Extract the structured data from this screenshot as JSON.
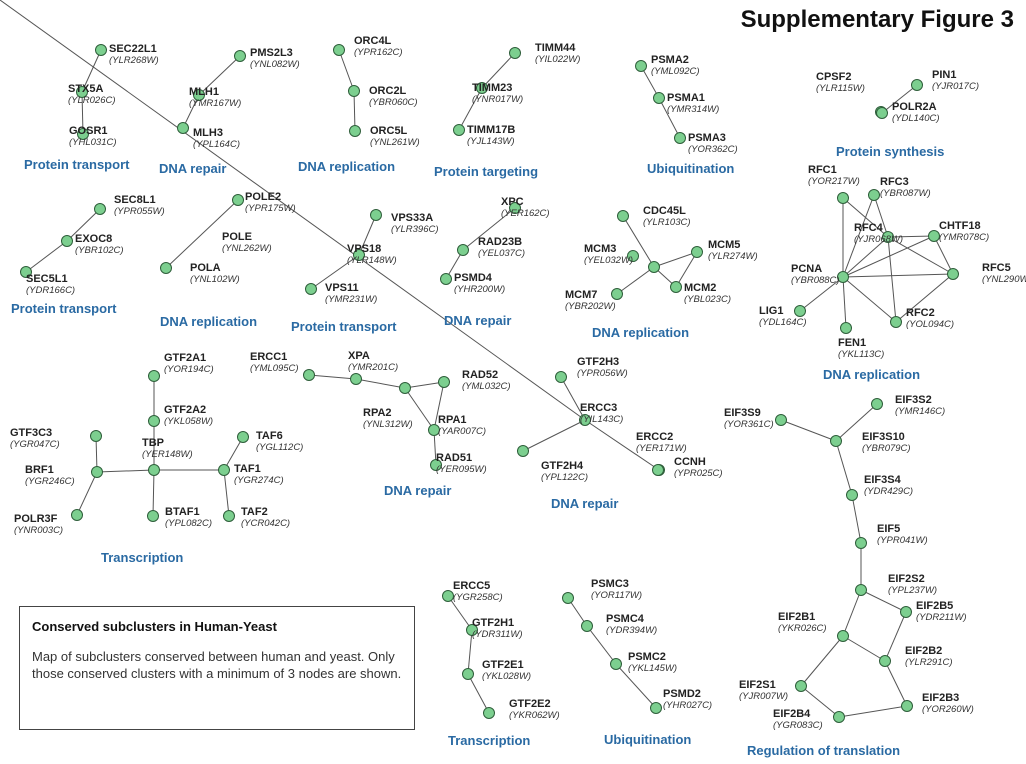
{
  "figure_title": "Supplementary Figure 3",
  "legend": {
    "heading": "Conserved subclusters in Human-Yeast",
    "body": "Map of subclusters conserved between human and yeast. Only those conserved clusters with a minimum of 3 nodes are shown."
  },
  "node_color": "#7ccf8f",
  "caption_color": "#2a6aa3",
  "clusters": [
    {
      "caption": "Protein transport",
      "nodes": [
        {
          "name": "SEC22L1",
          "id": "YLR268W"
        },
        {
          "name": "STX5A",
          "id": "YLR026C"
        },
        {
          "name": "GOSR1",
          "id": "YHL031C"
        }
      ],
      "edges": [
        [
          0,
          1
        ],
        [
          1,
          2
        ]
      ]
    },
    {
      "caption": "DNA repair",
      "nodes": [
        {
          "name": "PMS2L3",
          "id": "YNL082W"
        },
        {
          "name": "MLH1",
          "id": "YMR167W"
        },
        {
          "name": "MLH3",
          "id": "YPL164C"
        }
      ],
      "edges": [
        [
          0,
          1
        ],
        [
          1,
          2
        ]
      ]
    },
    {
      "caption": "DNA replication",
      "nodes": [
        {
          "name": "ORC4L",
          "id": "YPR162C"
        },
        {
          "name": "ORC2L",
          "id": "YBR060C"
        },
        {
          "name": "ORC5L",
          "id": "YNL261W"
        }
      ],
      "edges": [
        [
          0,
          1
        ],
        [
          1,
          2
        ]
      ]
    },
    {
      "caption": "Protein targeting",
      "nodes": [
        {
          "name": "TIMM44",
          "id": "YIL022W"
        },
        {
          "name": "TIMM23",
          "id": "YNR017W"
        },
        {
          "name": "TIMM17B",
          "id": "YJL143W"
        }
      ],
      "edges": [
        [
          0,
          1
        ],
        [
          1,
          2
        ]
      ]
    },
    {
      "caption": "Ubiquitination",
      "nodes": [
        {
          "name": "PSMA2",
          "id": "YML092C"
        },
        {
          "name": "PSMA1",
          "id": "YMR314W"
        },
        {
          "name": "PSMA3",
          "id": "YOR362C"
        }
      ],
      "edges": [
        [
          0,
          1
        ],
        [
          1,
          2
        ]
      ]
    },
    {
      "caption": "Protein synthesis",
      "nodes": [
        {
          "name": "CPSF2",
          "id": "YLR115W"
        },
        {
          "name": "PIN1",
          "id": "YJR017C"
        },
        {
          "name": "POLR2A",
          "id": "YDL140C"
        }
      ],
      "edges": [
        [
          0,
          2
        ],
        [
          1,
          2
        ]
      ]
    },
    {
      "caption": "Protein transport",
      "nodes": [
        {
          "name": "SEC8L1",
          "id": "YPR055W"
        },
        {
          "name": "EXOC8",
          "id": "YBR102C"
        },
        {
          "name": "SEC5L1",
          "id": "YDR166C"
        }
      ],
      "edges": [
        [
          0,
          1
        ],
        [
          1,
          2
        ]
      ]
    },
    {
      "caption": "DNA replication",
      "nodes": [
        {
          "name": "POLE2",
          "id": "YPR175W"
        },
        {
          "name": "POLE",
          "id": "YNL262W"
        },
        {
          "name": "POLA",
          "id": "YNL102W"
        }
      ],
      "edges": [
        [
          0,
          2
        ]
      ]
    },
    {
      "caption": "Protein transport",
      "nodes": [
        {
          "name": "VPS33A",
          "id": "YLR396C"
        },
        {
          "name": "VPS18",
          "id": "YLR148W"
        },
        {
          "name": "VPS11",
          "id": "YMR231W"
        }
      ],
      "edges": [
        [
          0,
          1
        ],
        [
          1,
          2
        ]
      ]
    },
    {
      "caption": "DNA repair",
      "nodes": [
        {
          "name": "XPC",
          "id": "YER162C"
        },
        {
          "name": "RAD23B",
          "id": "YEL037C"
        },
        {
          "name": "PSMD4",
          "id": "YHR200W"
        }
      ],
      "edges": [
        [
          0,
          1
        ],
        [
          1,
          2
        ]
      ]
    },
    {
      "caption": "DNA replication",
      "nodes": [
        {
          "name": "CDC45L",
          "id": "YLR103C"
        },
        {
          "name": "MCM3",
          "id": "YEL032W"
        },
        {
          "name": "MCM5",
          "id": "YLR274W"
        },
        {
          "name": "MCM7",
          "id": "YBR202W"
        },
        {
          "name": "MCM2",
          "id": "YBL023C"
        },
        {
          "name": "",
          "id": ""
        }
      ],
      "edges": [
        [
          0,
          5
        ],
        [
          5,
          2
        ],
        [
          5,
          3
        ],
        [
          5,
          4
        ],
        [
          2,
          4
        ]
      ]
    },
    {
      "caption": "DNA replication",
      "nodes": [
        {
          "name": "RFC1",
          "id": "YOR217W"
        },
        {
          "name": "RFC3",
          "id": "YBR087W"
        },
        {
          "name": "RFC4",
          "id": "YJR068W"
        },
        {
          "name": "CHTF18",
          "id": "YMR078C"
        },
        {
          "name": "PCNA",
          "id": "YBR088C"
        },
        {
          "name": "RFC5",
          "id": "YNL290W"
        },
        {
          "name": "LIG1",
          "id": "YDL164C"
        },
        {
          "name": "RFC2",
          "id": "YOL094C"
        },
        {
          "name": "FEN1",
          "id": "YKL113C"
        }
      ],
      "edges": [
        [
          0,
          4
        ],
        [
          1,
          4
        ],
        [
          2,
          4
        ],
        [
          3,
          4
        ],
        [
          4,
          5
        ],
        [
          4,
          6
        ],
        [
          4,
          7
        ],
        [
          4,
          8
        ],
        [
          1,
          2
        ],
        [
          2,
          3
        ],
        [
          2,
          5
        ],
        [
          2,
          7
        ],
        [
          3,
          5
        ],
        [
          5,
          7
        ],
        [
          0,
          2
        ]
      ]
    },
    {
      "caption": "Transcription",
      "nodes": [
        {
          "name": "GTF2A1",
          "id": "YOR194C"
        },
        {
          "name": "GTF2A2",
          "id": "YKL058W"
        },
        {
          "name": "GTF3C3",
          "id": "YGR047C"
        },
        {
          "name": "TBP",
          "id": "YER148W"
        },
        {
          "name": "TAF6",
          "id": "YGL112C"
        },
        {
          "name": "BRF1",
          "id": "YGR246C"
        },
        {
          "name": "TAF1",
          "id": "YGR274C"
        },
        {
          "name": "POLR3F",
          "id": "YNR003C"
        },
        {
          "name": "BTAF1",
          "id": "YPL082C"
        },
        {
          "name": "TAF2",
          "id": "YCR042C"
        }
      ],
      "edges": [
        [
          0,
          1
        ],
        [
          1,
          3
        ],
        [
          2,
          5
        ],
        [
          5,
          7
        ],
        [
          5,
          3
        ],
        [
          3,
          6
        ],
        [
          3,
          8
        ],
        [
          6,
          4
        ],
        [
          6,
          9
        ]
      ]
    },
    {
      "caption": "DNA repair",
      "nodes": [
        {
          "name": "ERCC1",
          "id": "YML095C"
        },
        {
          "name": "XPA",
          "id": "YMR201C"
        },
        {
          "name": "RAD52",
          "id": "YML032C"
        },
        {
          "name": "RPA2",
          "id": "YNL312W"
        },
        {
          "name": "RPA1",
          "id": "YAR007C"
        },
        {
          "name": "RAD51",
          "id": "YER095W"
        }
      ],
      "edges": [
        [
          0,
          1
        ],
        [
          1,
          3
        ],
        [
          3,
          2
        ],
        [
          3,
          4
        ],
        [
          2,
          4
        ],
        [
          4,
          5
        ]
      ]
    },
    {
      "caption": "DNA repair",
      "nodes": [
        {
          "name": "GTF2H3",
          "id": "YPR056W"
        },
        {
          "name": "ERCC3",
          "id": "YIL143C"
        },
        {
          "name": "ERCC2",
          "id": "YER171W"
        },
        {
          "name": "GTF2H4",
          "id": "YPL122C"
        },
        {
          "name": "CCNH",
          "id": "YPR025C"
        },
        {
          "name": "",
          "id": ""
        }
      ],
      "edges": [
        [
          0,
          5
        ],
        [
          5,
          1
        ],
        [
          5,
          3
        ],
        [
          5,
          2
        ],
        [
          2,
          4
        ]
      ]
    },
    {
      "caption": "Regulation of translation",
      "nodes": [
        {
          "name": "EIF3S9",
          "id": "YOR361C"
        },
        {
          "name": "EIF3S2",
          "id": "YMR146C"
        },
        {
          "name": "EIF3S10",
          "id": "YBR079C"
        },
        {
          "name": "EIF3S4",
          "id": "YDR429C"
        },
        {
          "name": "EIF5",
          "id": "YPR041W"
        },
        {
          "name": "EIF2S2",
          "id": "YPL237W"
        },
        {
          "name": "EIF2B5",
          "id": "YDR211W"
        },
        {
          "name": "EIF2B1",
          "id": "YKR026C"
        },
        {
          "name": "EIF2B2",
          "id": "YLR291C"
        },
        {
          "name": "EIF2S1",
          "id": "YJR007W"
        },
        {
          "name": "EIF2B3",
          "id": "YOR260W"
        },
        {
          "name": "EIF2B4",
          "id": "YGR083C"
        }
      ],
      "edges": [
        [
          0,
          2
        ],
        [
          1,
          2
        ],
        [
          2,
          3
        ],
        [
          3,
          4
        ],
        [
          4,
          5
        ],
        [
          5,
          6
        ],
        [
          5,
          7
        ],
        [
          6,
          8
        ],
        [
          7,
          9
        ],
        [
          7,
          8
        ],
        [
          8,
          10
        ],
        [
          10,
          11
        ],
        [
          9,
          11
        ]
      ]
    },
    {
      "caption": "Transcription",
      "nodes": [
        {
          "name": "ERCC5",
          "id": "YGR258C"
        },
        {
          "name": "GTF2H1",
          "id": "YDR311W"
        },
        {
          "name": "GTF2E1",
          "id": "YKL028W"
        },
        {
          "name": "GTF2E2",
          "id": "YKR062W"
        }
      ],
      "edges": [
        [
          0,
          1
        ],
        [
          1,
          2
        ],
        [
          2,
          3
        ]
      ]
    },
    {
      "caption": "Ubiquitination",
      "nodes": [
        {
          "name": "PSMC3",
          "id": "YOR117W"
        },
        {
          "name": "PSMC4",
          "id": "YDR394W"
        },
        {
          "name": "PSMC2",
          "id": "YKL145W"
        },
        {
          "name": "PSMD2",
          "id": "YHR027C"
        }
      ],
      "edges": [
        [
          0,
          1
        ],
        [
          1,
          2
        ],
        [
          2,
          3
        ]
      ]
    }
  ]
}
